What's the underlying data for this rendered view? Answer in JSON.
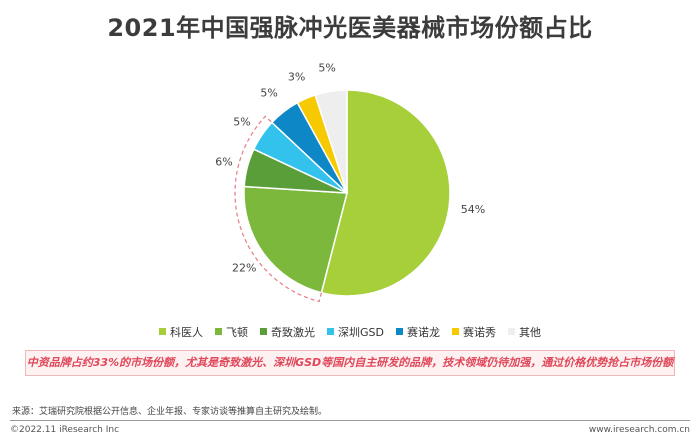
{
  "title": "2021年中国强脉冲光医美器械市场份额占比",
  "note": "中资品牌占约33%的市场份额，尤其是奇致激光、深圳GSD等国内自主研发的品牌，技术领域仍待加强，通过价格优势抢占市场份额",
  "source": "来源：艾瑞研究院根据公开信息、企业年报、专家访谈等推算自主研究及绘制。",
  "footer": {
    "copyright": "©2022.11 iResearch Inc",
    "website": "www.iresearch.com.cn"
  },
  "chart_data": {
    "type": "pie",
    "title": "2021年中国强脉冲光医美器械市场份额占比",
    "legend_position": "bottom",
    "slices": [
      {
        "name": "科医人",
        "value": 54,
        "label": "54%",
        "color": "#a6cf3a"
      },
      {
        "name": "飞顿",
        "value": 22,
        "label": "22%",
        "color": "#7cb83c"
      },
      {
        "name": "奇致激光",
        "value": 6,
        "label": "6%",
        "color": "#5a9e3a"
      },
      {
        "name": "深圳GSD",
        "value": 5,
        "label": "5%",
        "color": "#33c2ec"
      },
      {
        "name": "赛诺龙",
        "value": 5,
        "label": "5%",
        "color": "#0e87c6"
      },
      {
        "name": "赛诺秀",
        "value": 3,
        "label": "3%",
        "color": "#f7c900"
      },
      {
        "name": "其他",
        "value": 5,
        "label": "5%",
        "color": "#eeeeee"
      }
    ],
    "highlight_group": [
      "飞顿",
      "奇致激光",
      "深圳GSD"
    ],
    "highlight_color": "#e87b84"
  }
}
